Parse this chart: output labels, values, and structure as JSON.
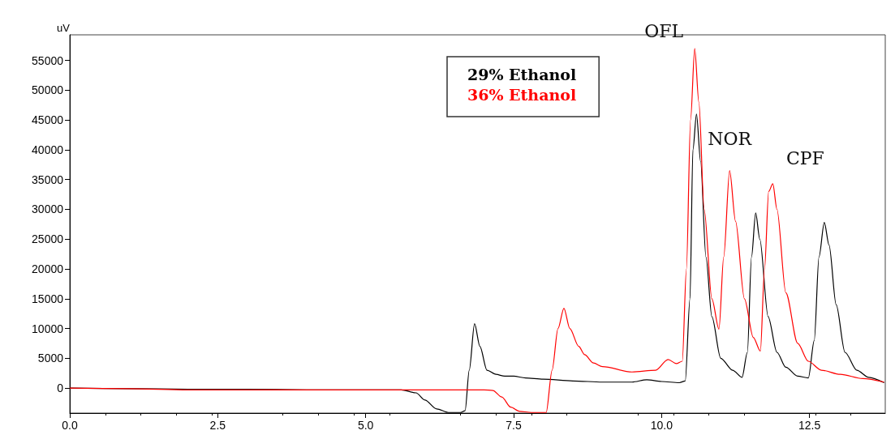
{
  "chart_data": {
    "type": "line",
    "ylabel": "uV",
    "xlim": [
      0,
      13.78
    ],
    "ylim": [
      -4200,
      59300
    ],
    "xticks": [
      {
        "value": 0,
        "label": "0.0"
      },
      {
        "value": 2.5,
        "label": "2.5"
      },
      {
        "value": 5,
        "label": "5.0"
      },
      {
        "value": 7.5,
        "label": "7.5"
      },
      {
        "value": 10,
        "label": "10.0"
      },
      {
        "value": 12.5,
        "label": "12.5"
      }
    ],
    "yticks": [
      0,
      5000,
      10000,
      15000,
      20000,
      25000,
      30000,
      35000,
      40000,
      45000,
      50000,
      55000
    ],
    "grid": false,
    "legend": "top",
    "marker": "none",
    "line_style": "solid",
    "annotations": [
      {
        "text": "OFL",
        "x": 10.56,
        "y": 57000
      },
      {
        "text": "NOR",
        "x": 11.15,
        "y": 36500
      },
      {
        "text": "CPF",
        "x": 11.88,
        "y": 34300
      }
    ],
    "series": [
      {
        "name": "29% Ethanol",
        "color": "#000000",
        "x": [
          0,
          1,
          2,
          3,
          4,
          5,
          5.6,
          5.85,
          6.0,
          6.2,
          6.4,
          6.6,
          6.68,
          6.75,
          6.84,
          6.93,
          7.05,
          7.2,
          7.35,
          7.5,
          7.7,
          8.0,
          8.5,
          9.0,
          9.5,
          9.75,
          10.0,
          10.3,
          10.4,
          10.48,
          10.53,
          10.59,
          10.66,
          10.75,
          10.85,
          11.0,
          11.2,
          11.36,
          11.45,
          11.52,
          11.59,
          11.66,
          11.8,
          11.95,
          12.1,
          12.3,
          12.48,
          12.58,
          12.66,
          12.75,
          12.83,
          12.95,
          13.1,
          13.3,
          13.5,
          13.76
        ],
        "values": [
          0,
          -100,
          -200,
          -200,
          -300,
          -300,
          -300,
          -800,
          -2000,
          -3500,
          -4100,
          -4100,
          -3800,
          3000,
          10800,
          7000,
          3000,
          2300,
          2000,
          2000,
          1700,
          1500,
          1200,
          1000,
          1000,
          1400,
          1100,
          900,
          1200,
          15000,
          40000,
          46000,
          38000,
          22000,
          12000,
          5000,
          3000,
          1800,
          6000,
          22000,
          29400,
          25000,
          12000,
          6000,
          3500,
          2000,
          1700,
          8000,
          22000,
          27800,
          24000,
          14000,
          6000,
          3000,
          1800,
          900
        ]
      },
      {
        "name": "36% Ethanol",
        "color": "#ff0000",
        "x": [
          0,
          1,
          2,
          3,
          4,
          5,
          6,
          7.0,
          7.15,
          7.3,
          7.45,
          7.6,
          7.8,
          8.05,
          8.15,
          8.25,
          8.35,
          8.45,
          8.6,
          8.7,
          8.85,
          9.0,
          9.5,
          9.9,
          10.11,
          10.25,
          10.35,
          10.42,
          10.49,
          10.56,
          10.63,
          10.72,
          10.85,
          10.97,
          11.05,
          11.15,
          11.25,
          11.4,
          11.55,
          11.67,
          11.74,
          11.81,
          11.88,
          11.95,
          12.1,
          12.3,
          12.48,
          12.7,
          13.02,
          13.4,
          13.76
        ],
        "values": [
          0,
          -100,
          -300,
          -300,
          -300,
          -300,
          -300,
          -300,
          -400,
          -1500,
          -3200,
          -3900,
          -4100,
          -4100,
          3000,
          10000,
          13400,
          10000,
          7000,
          5600,
          4200,
          3600,
          2700,
          3000,
          4800,
          4100,
          4500,
          20000,
          45000,
          57000,
          48000,
          30000,
          15000,
          9900,
          22000,
          36500,
          28000,
          15000,
          8500,
          6200,
          20000,
          33000,
          34300,
          30000,
          16000,
          7500,
          4500,
          3000,
          2300,
          1600,
          1000
        ]
      }
    ]
  }
}
